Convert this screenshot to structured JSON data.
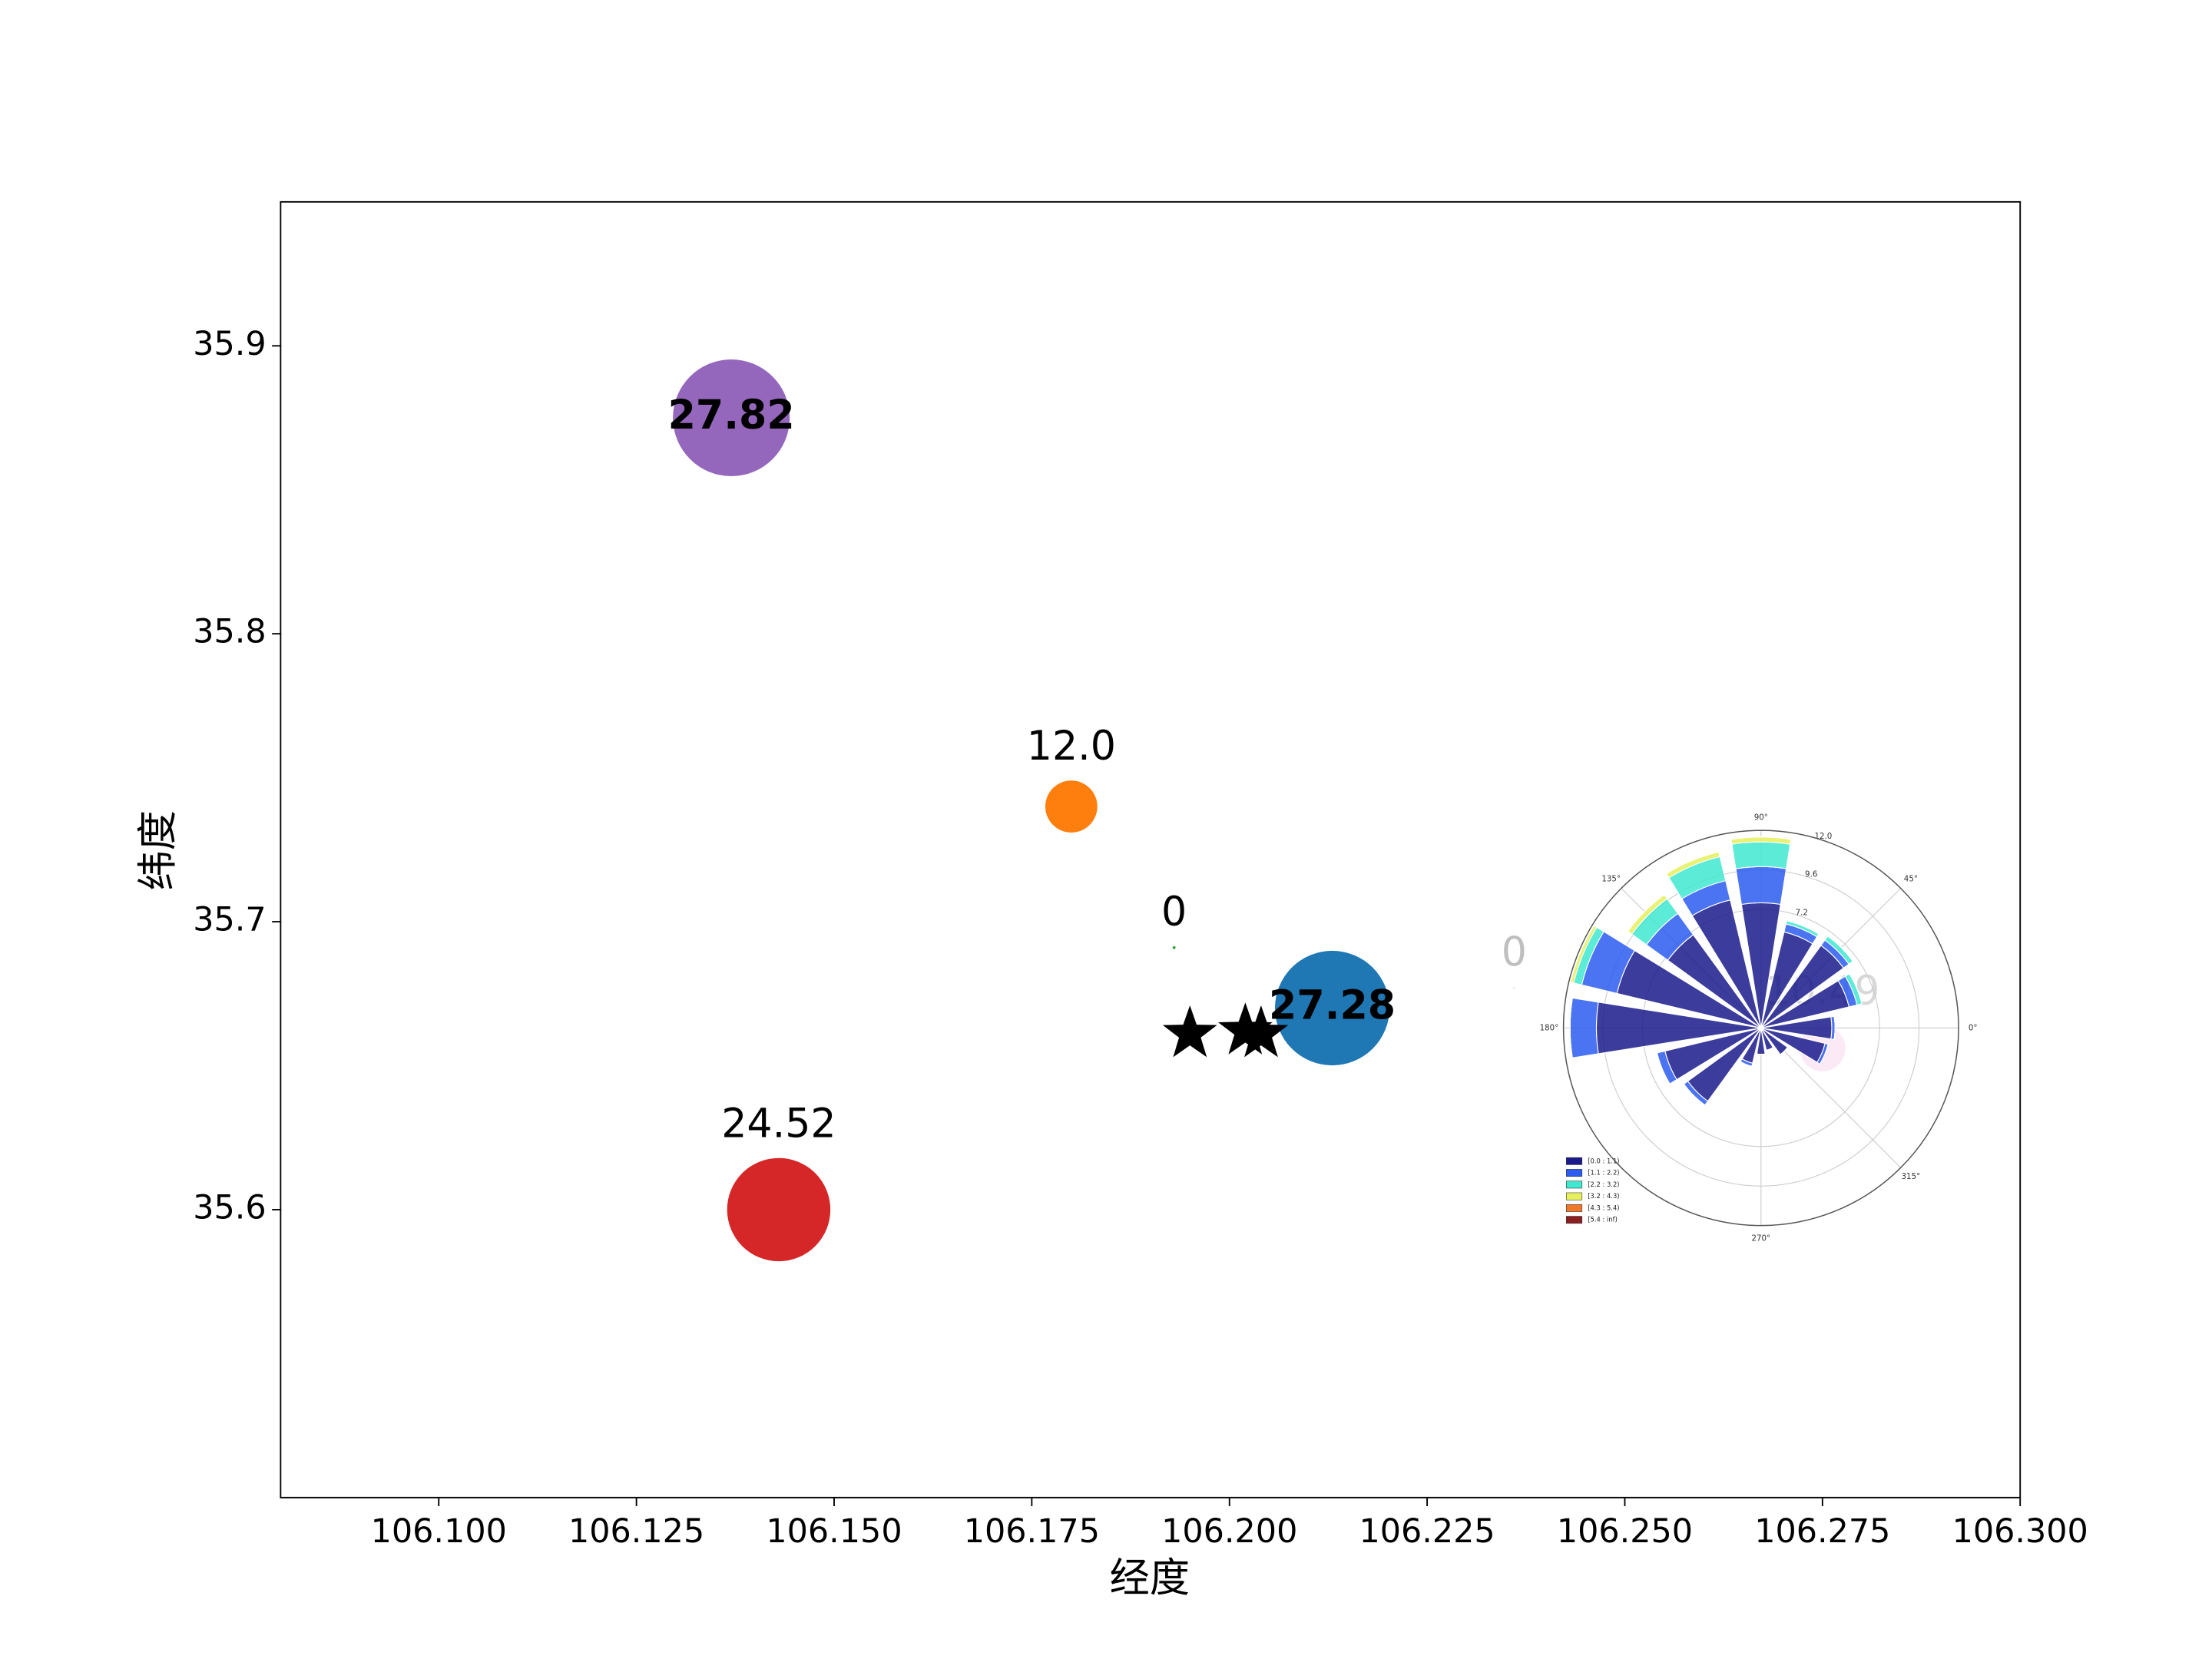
{
  "chart_data": [
    {
      "type": "scatter",
      "xlabel": "经度",
      "ylabel": "纬度",
      "xlim": [
        106.08,
        106.3
      ],
      "ylim": [
        35.5,
        35.95
      ],
      "xticks": [
        {
          "value": 106.1,
          "label": "106.100"
        },
        {
          "value": 106.125,
          "label": "106.125"
        },
        {
          "value": 106.15,
          "label": "106.150"
        },
        {
          "value": 106.175,
          "label": "106.175"
        },
        {
          "value": 106.2,
          "label": "106.200"
        },
        {
          "value": 106.225,
          "label": "106.225"
        },
        {
          "value": 106.25,
          "label": "106.250"
        },
        {
          "value": 106.275,
          "label": "106.275"
        },
        {
          "value": 106.3,
          "label": "106.300"
        }
      ],
      "yticks": [
        35.6,
        35.7,
        35.8,
        35.9
      ],
      "series": [
        {
          "marker": "circle",
          "x": [
            106.137,
            106.18,
            106.193,
            106.213,
            106.143,
            106.236,
            106.275
          ],
          "y": [
            35.875,
            35.74,
            35.691,
            35.67,
            35.6,
            35.677,
            35.656
          ],
          "sizes": [
            27.82,
            12,
            0,
            27.28,
            24.52,
            0,
            10.49
          ],
          "value_labels": [
            "27.82",
            "12.0",
            "0",
            "27.28",
            "24.52",
            "0",
            "10.49"
          ],
          "colors": [
            "#9467bd",
            "#ff7f0e",
            "#2ca02c",
            "#1f77b4",
            "#d62728",
            "#c7c7c7",
            "#e377c2"
          ],
          "alphas": [
            1,
            1,
            1,
            1,
            1,
            0.25,
            0.25
          ],
          "label_positions": [
            "center",
            "above",
            "above",
            "center",
            "above",
            "above",
            "above"
          ]
        },
        {
          "marker": "star",
          "color": "#000000",
          "x": [
            106.195,
            106.202,
            106.204
          ],
          "y": [
            35.661,
            35.662,
            35.661
          ]
        }
      ]
    },
    {
      "type": "windrose",
      "directions": [
        0,
        22.5,
        45,
        67.5,
        90,
        112.5,
        135,
        157.5,
        180,
        202.5,
        225,
        247.5,
        270,
        292.5,
        315,
        337.5
      ],
      "rlim": [
        0,
        12
      ],
      "rticks": [
        7.2,
        9.6,
        {
          "value": 12,
          "label": "12.0"
        }
      ],
      "thetaticks": [
        {
          "value": 0,
          "label": "0°"
        },
        {
          "value": 45,
          "label": "45°"
        },
        {
          "value": 90,
          "label": "90°"
        },
        {
          "value": 135,
          "label": "135°"
        },
        {
          "value": 180,
          "label": "180°"
        },
        {
          "value": 270,
          "label": "270°"
        },
        {
          "value": 315,
          "label": "315°"
        }
      ],
      "series": [
        {
          "name": "[0.0 : 1.1)",
          "color": "#1a1a8c",
          "values": [
            4.3,
            5.5,
            6.2,
            6.0,
            7.6,
            8.0,
            7.0,
            9.0,
            10.0,
            6.0,
            5.5,
            2.2,
            1.6,
            1.4,
            2.0,
            4.0
          ]
        },
        {
          "name": "[1.1 : 2.2)",
          "color": "#2b5cf0",
          "values": [
            0.2,
            0.5,
            0.4,
            0.5,
            2.2,
            1.2,
            1.6,
            2.2,
            1.6,
            0.5,
            0.3,
            0.2,
            0,
            0,
            0,
            0.2
          ]
        },
        {
          "name": "[2.2 : 3.2)",
          "color": "#40e8d0",
          "values": [
            0,
            0.3,
            0.3,
            0.2,
            1.5,
            1.5,
            1.1,
            0.5,
            0,
            0,
            0,
            0,
            0,
            0,
            0,
            0
          ]
        },
        {
          "name": "[3.2 : 4.3)",
          "color": "#e6f05a",
          "values": [
            0,
            0,
            0,
            0,
            0.3,
            0.3,
            0.3,
            0.2,
            0,
            0,
            0,
            0,
            0,
            0,
            0,
            0
          ]
        },
        {
          "name": "[4.3 : 5.4)",
          "color": "#f0782a",
          "values": [
            0,
            0,
            0,
            0,
            0,
            0,
            0,
            0,
            0,
            0,
            0,
            0,
            0,
            0,
            0,
            0
          ]
        },
        {
          "name": "[5.4 : inf)",
          "color": "#8b1e1e",
          "values": [
            0,
            0,
            0,
            0,
            0,
            0,
            0,
            0,
            0,
            0,
            0,
            0,
            0,
            0,
            0,
            0
          ]
        }
      ]
    }
  ]
}
